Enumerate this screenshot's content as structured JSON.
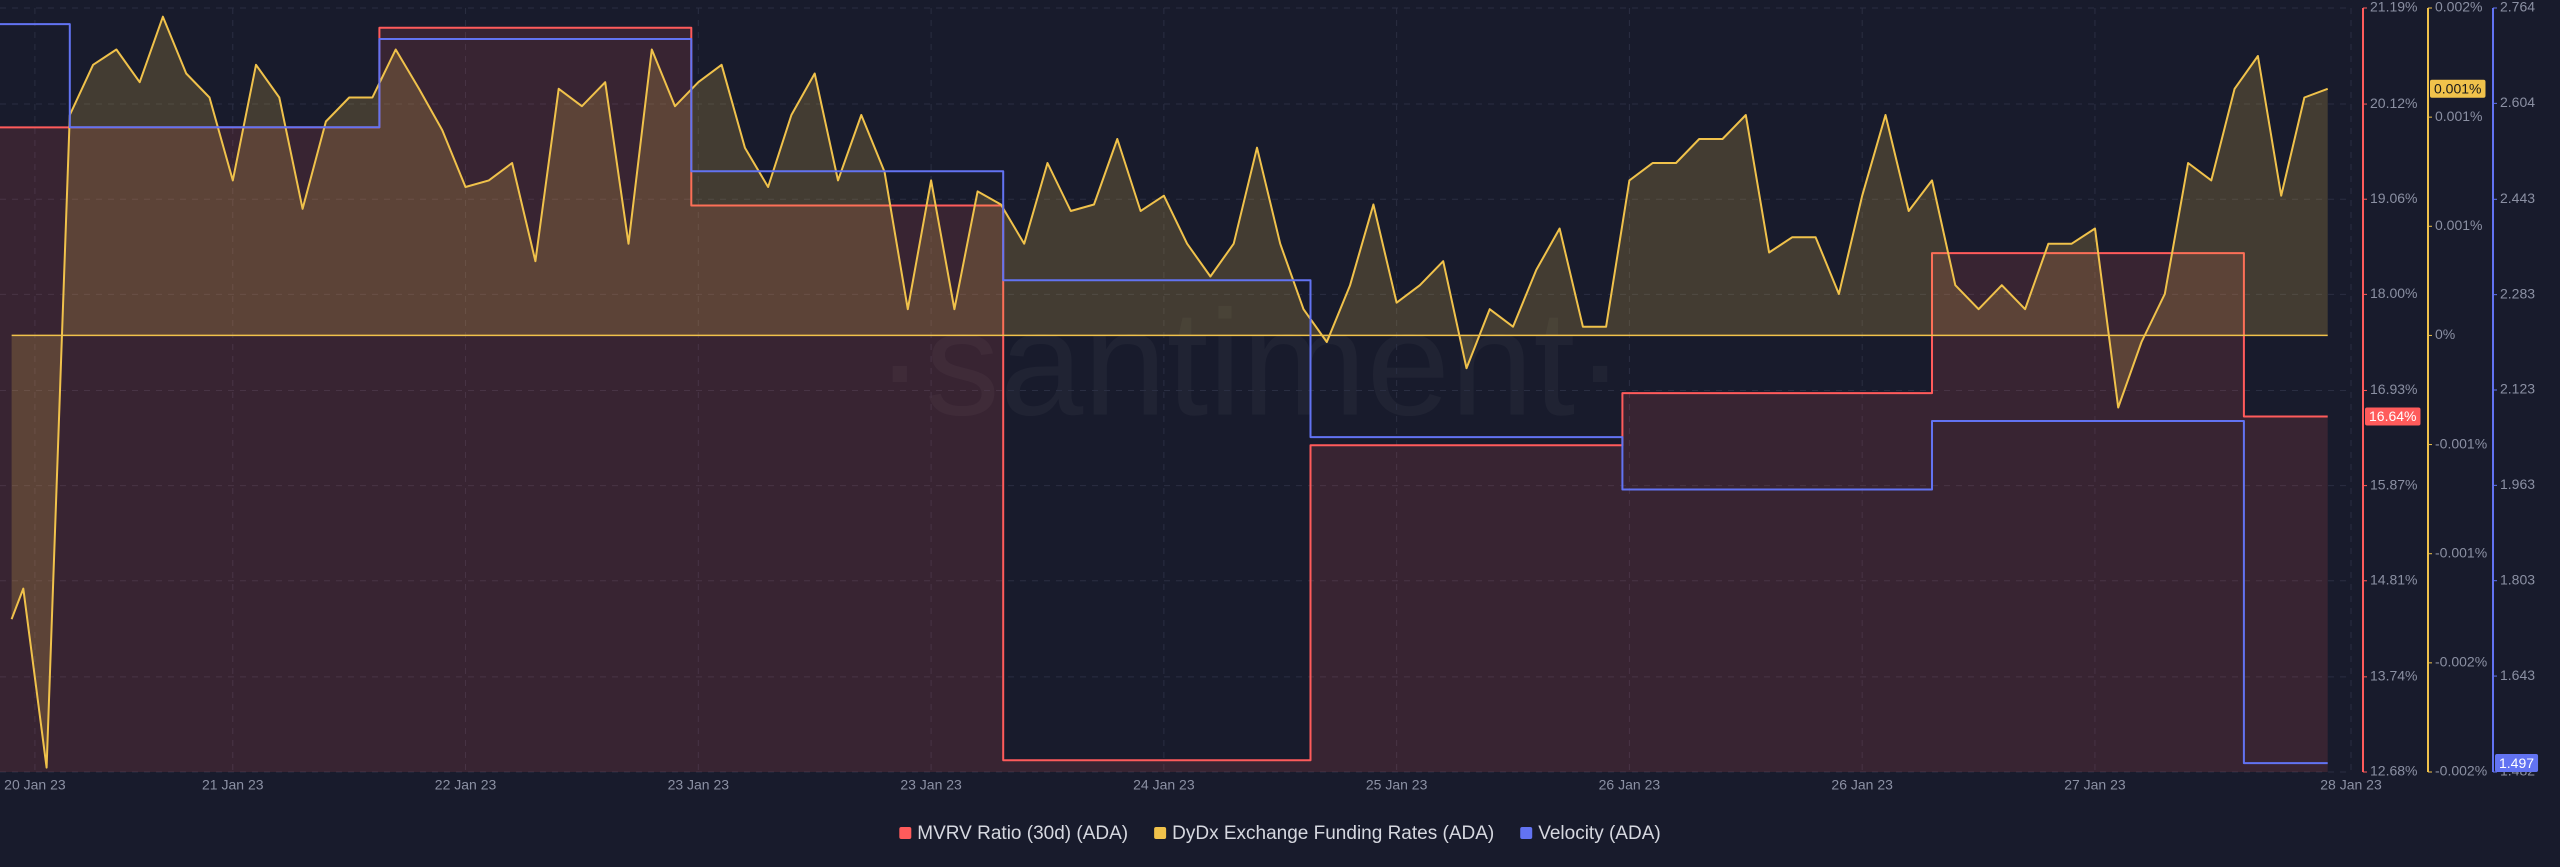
{
  "chart_data": {
    "type": "line",
    "watermark": "·santiment·",
    "xlim": [
      0,
      10.1
    ],
    "xticks": [
      {
        "value": 0.15,
        "label": "20 Jan 23"
      },
      {
        "value": 1,
        "label": "21 Jan 23"
      },
      {
        "value": 2,
        "label": "22 Jan 23"
      },
      {
        "value": 3,
        "label": "23 Jan 23"
      },
      {
        "value": 4,
        "label": "23 Jan 23"
      },
      {
        "value": 5,
        "label": "24 Jan 23"
      },
      {
        "value": 6,
        "label": "25 Jan 23"
      },
      {
        "value": 7,
        "label": "26 Jan 23"
      },
      {
        "value": 8,
        "label": "26 Jan 23"
      },
      {
        "value": 9,
        "label": "27 Jan 23"
      },
      {
        "value": 10.1,
        "label": "28 Jan 23"
      }
    ],
    "ylim": [
      12.68,
      21.19
    ],
    "yticks": [
      {
        "value": 21.19,
        "label": "21.19%"
      },
      {
        "value": 20.12,
        "label": "20.12%"
      },
      {
        "value": 19.06,
        "label": "19.06%"
      },
      {
        "value": 18.0,
        "label": "18.00%"
      },
      {
        "value": 16.93,
        "label": "16.93%"
      },
      {
        "value": 15.87,
        "label": "15.87%"
      },
      {
        "value": 14.81,
        "label": "14.81%"
      },
      {
        "value": 13.74,
        "label": "13.74%"
      },
      {
        "value": 12.68,
        "label": "12.68%"
      }
    ],
    "y2lim": [
      -0.002,
      0.0015
    ],
    "y2ticks": [
      {
        "value": 0.0015,
        "label": "0.002%"
      },
      {
        "value": 0.001,
        "label": "0.001%"
      },
      {
        "value": 0.0005,
        "label": "0.001%"
      },
      {
        "value": 0,
        "label": "0%"
      },
      {
        "value": -0.0005,
        "label": "-0.001%"
      },
      {
        "value": -0.001,
        "label": "-0.001%"
      },
      {
        "value": -0.0015,
        "label": "-0.002%"
      },
      {
        "value": -0.002,
        "label": "-0.002%"
      }
    ],
    "y3lim": [
      1.482,
      2.764
    ],
    "y3ticks": [
      2.764,
      2.604,
      2.443,
      2.283,
      2.123,
      1.963,
      1.803,
      1.643,
      1.482
    ],
    "grid": true,
    "series": [
      {
        "name": "MVRV Ratio (30d) (ADA)",
        "color": "#ff5b5b",
        "axis": "y",
        "fill": "bottom",
        "last_label": "16.64%",
        "last_value": 16.64,
        "x": [
          0,
          1.63,
          1.63,
          2.97,
          2.97,
          4.31,
          4.31,
          5.63,
          5.63,
          6.97,
          6.97,
          8.3,
          8.3,
          9.64,
          9.64,
          10
        ],
        "values": [
          19.86,
          19.86,
          20.97,
          20.97,
          18.99,
          18.99,
          12.81,
          12.81,
          16.32,
          16.32,
          16.9,
          16.9,
          18.46,
          18.46,
          16.64,
          16.64
        ]
      },
      {
        "name": "DyDx Exchange Funding Rates (ADA)",
        "color": "#f0c24b",
        "axis": "y2",
        "fill": "zero",
        "last_label": "0.001%",
        "last_value": 0.00113,
        "x": [
          0.05,
          0.1,
          0.2,
          0.3,
          0.4,
          0.5,
          0.6,
          0.7,
          0.8,
          0.9,
          1,
          1.1,
          1.2,
          1.3,
          1.4,
          1.5,
          1.6,
          1.7,
          1.8,
          1.9,
          2,
          2.1,
          2.2,
          2.3,
          2.4,
          2.5,
          2.6,
          2.7,
          2.8,
          2.9,
          3,
          3.1,
          3.2,
          3.3,
          3.4,
          3.5,
          3.6,
          3.7,
          3.8,
          3.9,
          4,
          4.1,
          4.2,
          4.3,
          4.4,
          4.5,
          4.6,
          4.7,
          4.8,
          4.9,
          5,
          5.1,
          5.2,
          5.3,
          5.4,
          5.5,
          5.6,
          5.7,
          5.8,
          5.9,
          6,
          6.1,
          6.2,
          6.3,
          6.4,
          6.5,
          6.6,
          6.7,
          6.8,
          6.9,
          7,
          7.1,
          7.2,
          7.3,
          7.4,
          7.5,
          7.6,
          7.7,
          7.8,
          7.9,
          8,
          8.1,
          8.2,
          8.3,
          8.4,
          8.5,
          8.6,
          8.7,
          8.8,
          8.9,
          9,
          9.1,
          9.2,
          9.3,
          9.4,
          9.5,
          9.6,
          9.7,
          9.8,
          9.9,
          10
        ],
        "values": [
          -0.0013,
          -0.00116,
          -0.00198,
          0.00101,
          0.00124,
          0.00131,
          0.00116,
          0.00146,
          0.0012,
          0.00109,
          0.00071,
          0.00124,
          0.00109,
          0.00058,
          0.00098,
          0.00109,
          0.00109,
          0.00131,
          0.00113,
          0.00094,
          0.00068,
          0.00071,
          0.00079,
          0.00034,
          0.00113,
          0.00105,
          0.00116,
          0.00042,
          0.00131,
          0.00105,
          0.00116,
          0.00124,
          0.00086,
          0.00068,
          0.00101,
          0.0012,
          0.00071,
          0.00101,
          0.00075,
          0.00012,
          0.00071,
          0.00012,
          0.00066,
          0.0006,
          0.00042,
          0.00079,
          0.00057,
          0.0006,
          0.0009,
          0.00057,
          0.00064,
          0.00042,
          0.00027,
          0.00042,
          0.00086,
          0.00042,
          0.00012,
          -3e-05,
          0.00023,
          0.0006,
          0.00015,
          0.00023,
          0.00034,
          -0.00015,
          0.00012,
          4e-05,
          0.0003,
          0.00049,
          4e-05,
          4e-05,
          0.00071,
          0.00079,
          0.00079,
          0.0009,
          0.0009,
          0.00101,
          0.00038,
          0.00045,
          0.00045,
          0.00019,
          0.00064,
          0.00101,
          0.00057,
          0.00071,
          0.00023,
          0.00012,
          0.00023,
          0.00012,
          0.00042,
          0.00042,
          0.00049,
          -0.00033,
          -3e-05,
          0.00019,
          0.00079,
          0.00071,
          0.00113,
          0.00128,
          0.00064,
          0.00109,
          0.00113
        ]
      },
      {
        "name": "Velocity (ADA)",
        "color": "#6273f2",
        "axis": "y3",
        "last_label": "1.497",
        "last_value": 1.497,
        "x": [
          0,
          0.3,
          0.3,
          1.63,
          1.63,
          2.97,
          2.97,
          4.31,
          4.31,
          5.63,
          5.63,
          6.97,
          6.97,
          8.3,
          8.3,
          9.64,
          9.64,
          10
        ],
        "values": [
          2.737,
          2.737,
          2.564,
          2.564,
          2.712,
          2.712,
          2.49,
          2.49,
          2.307,
          2.307,
          2.044,
          2.044,
          1.956,
          1.956,
          2.071,
          2.071,
          1.497,
          1.497
        ]
      }
    ]
  }
}
